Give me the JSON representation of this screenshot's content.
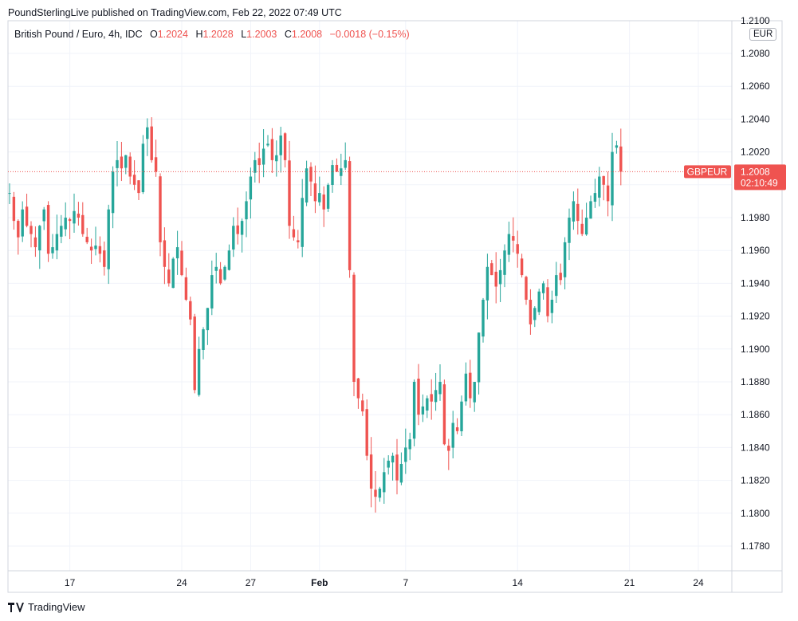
{
  "header": {
    "published": "PoundSterlingLive published on TradingView.com, Feb 22, 2022 07:49 UTC"
  },
  "legend": {
    "symbol": "British Pound / Euro, 4h, IDC",
    "o_label": "O",
    "o": "1.2024",
    "h_label": "H",
    "h": "1.2028",
    "l_label": "L",
    "l": "1.2003",
    "c_label": "C",
    "c": "1.2008",
    "change": "−0.0018 (−0.15%)"
  },
  "currency": "EUR",
  "footer": {
    "brand": "TradingView"
  },
  "colors": {
    "up": "#26a69a",
    "down": "#ef5350",
    "grid": "#f0f3fa",
    "axis": "#d1d4dc"
  },
  "chart_data": {
    "type": "candlestick",
    "ylim": [
      1.1765,
      1.2105
    ],
    "y_ticks": [
      "1.2100",
      "1.2080",
      "1.2060",
      "1.2040",
      "1.2020",
      "1.2000",
      "1.1980",
      "1.1960",
      "1.1940",
      "1.1920",
      "1.1900",
      "1.1880",
      "1.1860",
      "1.1840",
      "1.1820",
      "1.1800",
      "1.1780"
    ],
    "x_ticks": [
      {
        "label": "17",
        "i": 14
      },
      {
        "label": "24",
        "i": 40
      },
      {
        "label": "27",
        "i": 56
      },
      {
        "label": "Feb",
        "i": 72
      },
      {
        "label": "7",
        "i": 92
      },
      {
        "label": "14",
        "i": 118
      },
      {
        "label": "21",
        "i": 144
      },
      {
        "label": "24",
        "i": 160
      }
    ],
    "last_price": {
      "label": "GBPEUR",
      "value": "1.2008",
      "countdown": "02:10:49",
      "price": 1.2008
    },
    "closes": [
      1.1995,
      1.1978,
      1.1968,
      1.1985,
      1.1975,
      1.197,
      1.1962,
      1.1975,
      1.1985,
      1.1958,
      1.1962,
      1.197,
      1.1975,
      1.198,
      1.1978,
      1.1984,
      1.198,
      1.197,
      1.1965,
      1.196,
      1.1963,
      1.1958,
      1.195,
      1.1985,
      1.2008,
      1.2015,
      1.201,
      1.2018,
      1.2005,
      1.2,
      1.1995,
      1.2025,
      1.2035,
      1.2015,
      1.2008,
      1.1965,
      1.195,
      1.194,
      1.1955,
      1.1962,
      1.1945,
      1.193,
      1.1918,
      1.1875,
      1.19,
      1.1912,
      1.1925,
      1.1945,
      1.195,
      1.194,
      1.195,
      1.196,
      1.1975,
      1.197,
      1.1978,
      1.199,
      1.2005,
      1.2015,
      1.2012,
      1.2022,
      1.2025,
      1.2015,
      1.2018,
      1.203,
      1.2015,
      1.1975,
      1.1968,
      1.1965,
      1.1992,
      1.201,
      1.2002,
      1.199,
      1.1995,
      1.1985,
      1.2,
      1.2012,
      1.2008,
      1.201,
      1.2015,
      1.1948,
      1.188,
      1.187,
      1.1862,
      1.1835,
      1.1815,
      1.181,
      1.1815,
      1.1825,
      1.1832,
      1.1835,
      1.182,
      1.183,
      1.184,
      1.1845,
      1.188,
      1.186,
      1.1865,
      1.187,
      1.1868,
      1.1875,
      1.188,
      1.1842,
      1.1838,
      1.1855,
      1.185,
      1.1868,
      1.1885,
      1.187,
      1.188,
      1.191,
      1.193,
      1.195,
      1.1945,
      1.1938,
      1.1948,
      1.196,
      1.197,
      1.1966,
      1.1958,
      1.1945,
      1.193,
      1.1915,
      1.1925,
      1.1935,
      1.194,
      1.192,
      1.193,
      1.1945,
      1.1942,
      1.1965,
      1.198,
      1.199,
      1.1978,
      1.197,
      1.198,
      1.199,
      1.1995,
      1.2005,
      1.2,
      1.199,
      1.202,
      1.2024,
      1.2008
    ]
  }
}
